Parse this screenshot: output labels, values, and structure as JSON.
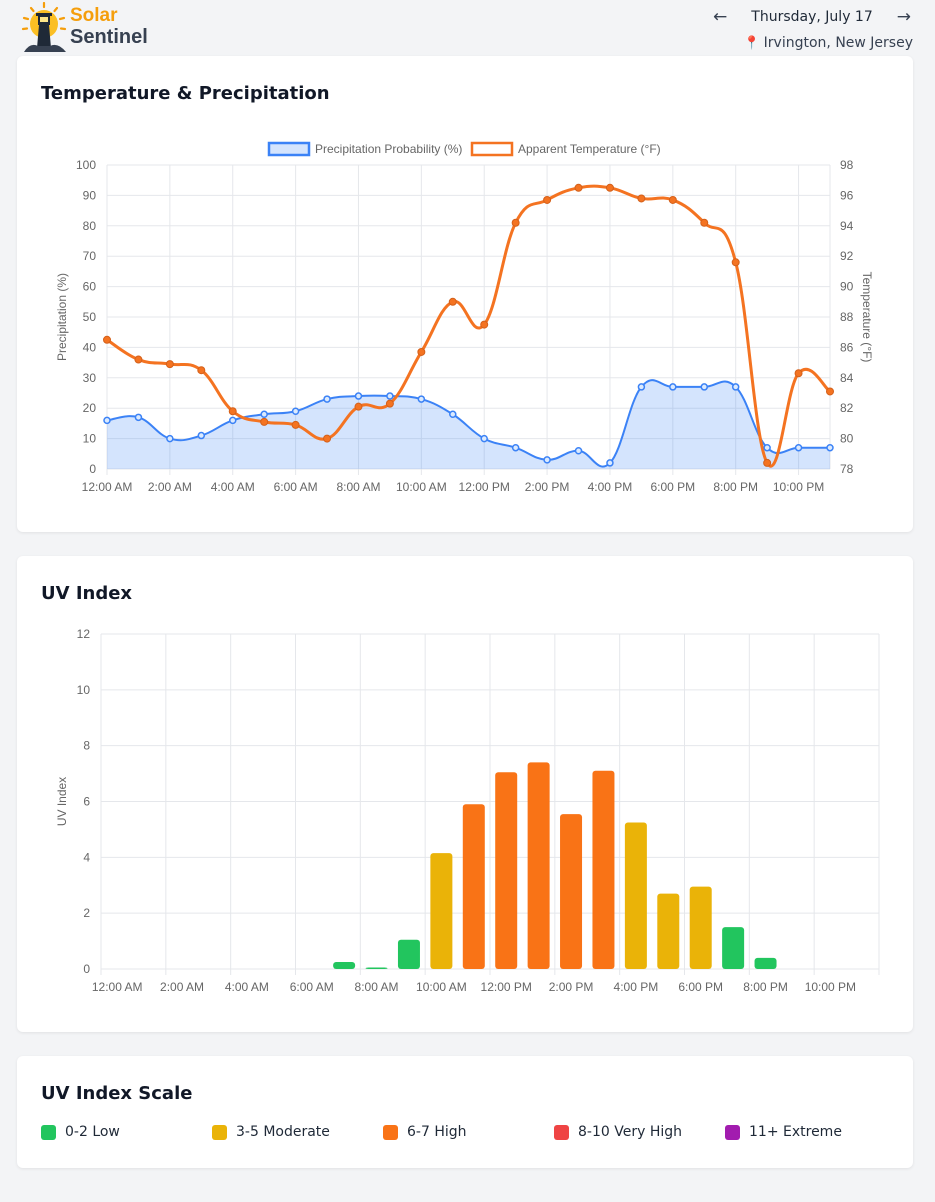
{
  "brand": {
    "line1": "Solar",
    "line2": "Sentinel"
  },
  "nav": {
    "prev_icon": "←",
    "date": "Thursday, July 17",
    "next_icon": "→"
  },
  "location": {
    "pin_icon": "📍",
    "name": "Irvington, New Jersey"
  },
  "temp_card": {
    "title": "Temperature & Precipitation"
  },
  "uv_card": {
    "title": "UV Index"
  },
  "scale_card": {
    "title": "UV Index Scale",
    "items": [
      {
        "label": "0-2 Low",
        "color": "#22c55e"
      },
      {
        "label": "3-5 Moderate",
        "color": "#eab308"
      },
      {
        "label": "6-7 High",
        "color": "#f97316"
      },
      {
        "label": "8-10 Very High",
        "color": "#ef4444"
      },
      {
        "label": "11+ Extreme",
        "color": "#a21caf"
      }
    ]
  },
  "chart_data": [
    {
      "type": "line",
      "x": [
        "12:00 AM",
        "1:00 AM",
        "2:00 AM",
        "3:00 AM",
        "4:00 AM",
        "5:00 AM",
        "6:00 AM",
        "7:00 AM",
        "8:00 AM",
        "9:00 AM",
        "10:00 AM",
        "11:00 AM",
        "12:00 PM",
        "1:00 PM",
        "2:00 PM",
        "3:00 PM",
        "4:00 PM",
        "5:00 PM",
        "6:00 PM",
        "7:00 PM",
        "8:00 PM",
        "9:00 PM",
        "10:00 PM",
        "11:00 PM"
      ],
      "xticks": [
        "12:00 AM",
        "2:00 AM",
        "4:00 AM",
        "6:00 AM",
        "8:00 AM",
        "10:00 AM",
        "12:00 PM",
        "2:00 PM",
        "4:00 PM",
        "6:00 PM",
        "8:00 PM",
        "10:00 PM"
      ],
      "series": [
        {
          "name": "Precipitation Probability (%)",
          "axis": "left",
          "color": "#3b82f6",
          "fill": "rgba(59,130,246,0.22)",
          "values": [
            16,
            17,
            10,
            11,
            16,
            18,
            19,
            23,
            24,
            24,
            23,
            18,
            10,
            7,
            3,
            6,
            2,
            27,
            27,
            27,
            27,
            7,
            7,
            7
          ]
        },
        {
          "name": "Apparent Temperature (°F)",
          "axis": "right",
          "color": "#f47321",
          "values": [
            86.5,
            85.2,
            84.9,
            84.5,
            81.8,
            81.1,
            80.9,
            80.0,
            82.1,
            82.3,
            85.7,
            89.0,
            87.5,
            94.2,
            95.7,
            96.5,
            96.5,
            95.8,
            95.7,
            94.2,
            91.6,
            78.4,
            84.3,
            83.1
          ]
        }
      ],
      "ylabel_left": "Precipitation (%)",
      "ylim_left": [
        0,
        100
      ],
      "yticks_left": [
        0,
        10,
        20,
        30,
        40,
        50,
        60,
        70,
        80,
        90,
        100
      ],
      "ylabel_right": "Temperature (°F)",
      "ylim_right": [
        78,
        98
      ],
      "yticks_right": [
        78,
        80,
        82,
        84,
        86,
        88,
        90,
        92,
        94,
        96,
        98
      ],
      "legend_position": "top",
      "grid": true
    },
    {
      "type": "bar",
      "categories": [
        "12:00 AM",
        "1:00 AM",
        "2:00 AM",
        "3:00 AM",
        "4:00 AM",
        "5:00 AM",
        "6:00 AM",
        "7:00 AM",
        "8:00 AM",
        "9:00 AM",
        "10:00 AM",
        "11:00 AM",
        "12:00 PM",
        "1:00 PM",
        "2:00 PM",
        "3:00 PM",
        "4:00 PM",
        "5:00 PM",
        "6:00 PM",
        "7:00 PM",
        "8:00 PM",
        "9:00 PM",
        "10:00 PM",
        "11:00 PM"
      ],
      "xticks": [
        "12:00 AM",
        "2:00 AM",
        "4:00 AM",
        "6:00 AM",
        "8:00 AM",
        "10:00 AM",
        "12:00 PM",
        "2:00 PM",
        "4:00 PM",
        "6:00 PM",
        "8:00 PM",
        "10:00 PM"
      ],
      "values": [
        0,
        0,
        0,
        0,
        0,
        0,
        0,
        0.25,
        0.05,
        1.05,
        4.15,
        5.9,
        7.05,
        7.4,
        5.55,
        7.1,
        5.25,
        2.7,
        2.95,
        1.5,
        0.4,
        0,
        0,
        0
      ],
      "ylabel": "UV Index",
      "ylim": [
        0,
        12
      ],
      "yticks": [
        0,
        2,
        4,
        6,
        8,
        10,
        12
      ],
      "grid": true
    }
  ]
}
